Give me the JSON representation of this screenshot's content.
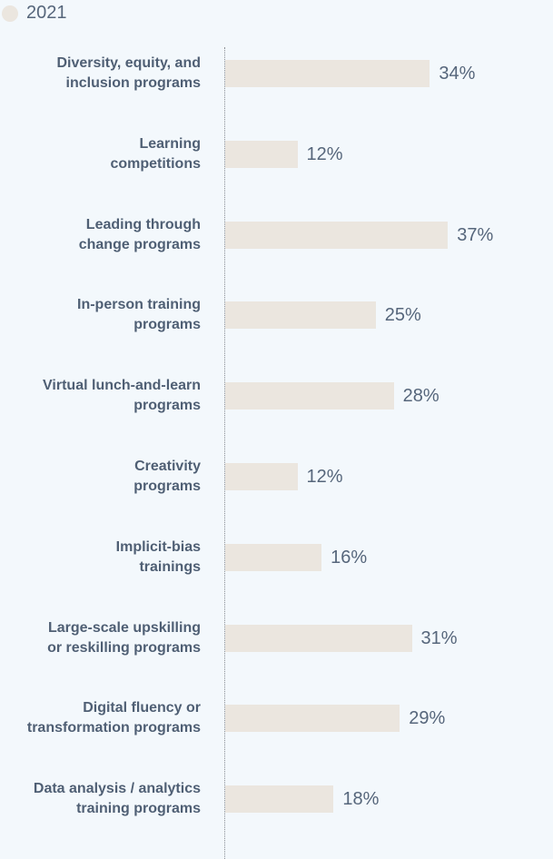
{
  "chart_data": {
    "type": "bar",
    "orientation": "horizontal",
    "legend": {
      "position": "top-left",
      "entries": [
        "2021"
      ]
    },
    "series": [
      {
        "name": "2021",
        "color": "#ebe6df",
        "values": [
          34,
          12,
          37,
          25,
          28,
          12,
          16,
          31,
          29,
          18
        ]
      }
    ],
    "categories": [
      [
        "Diversity, equity, and",
        "inclusion programs"
      ],
      [
        "Learning",
        "competitions"
      ],
      [
        "Leading through",
        "change programs"
      ],
      [
        "In-person training",
        "programs"
      ],
      [
        "Virtual lunch-and-learn",
        "programs"
      ],
      [
        "Creativity",
        "programs"
      ],
      [
        "Implicit-bias",
        "trainings"
      ],
      [
        "Large-scale upskilling",
        "or reskilling programs"
      ],
      [
        "Digital fluency or",
        "transformation programs"
      ],
      [
        "Data analysis / analytics",
        "training programs"
      ]
    ],
    "data_labels": [
      "34%",
      "12%",
      "37%",
      "25%",
      "28%",
      "12%",
      "16%",
      "31%",
      "29%",
      "18%"
    ],
    "value_unit": "%",
    "grid": false
  }
}
